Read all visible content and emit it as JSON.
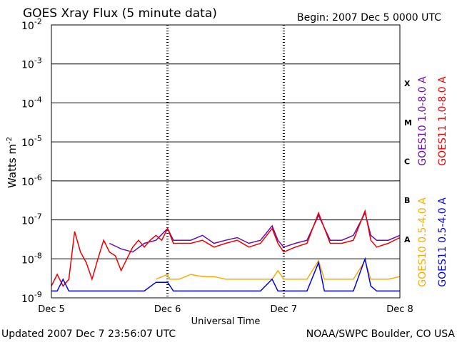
{
  "chart_data": {
    "type": "line",
    "title": "GOES Xray Flux (5 minute data)",
    "begin_label": "Begin:  2007 Dec 5 0000 UTC",
    "xlabel": "Universal Time",
    "ylabel_main": "Watts m",
    "ylabel_exp": "-2",
    "x_ticks": [
      "Dec 5",
      "Dec 6",
      "Dec 7",
      "Dec 8"
    ],
    "x_range_days": [
      0,
      3
    ],
    "y_scale": "log",
    "y_range_exp": [
      -9,
      -2
    ],
    "y_ticks": [
      {
        "base": "10",
        "exp": "-9",
        "e": -9
      },
      {
        "base": "10",
        "exp": "-8",
        "e": -8
      },
      {
        "base": "10",
        "exp": "-7",
        "e": -7
      },
      {
        "base": "10",
        "exp": "-6",
        "e": -6
      },
      {
        "base": "10",
        "exp": "-5",
        "e": -5
      },
      {
        "base": "10",
        "exp": "-4",
        "e": -4
      },
      {
        "base": "10",
        "exp": "-3",
        "e": -3
      },
      {
        "base": "10",
        "exp": "-2",
        "e": -2
      }
    ],
    "flare_classes": [
      {
        "label": "X",
        "e": -3.5
      },
      {
        "label": "M",
        "e": -4.5
      },
      {
        "label": "C",
        "e": -5.5
      },
      {
        "label": "B",
        "e": -6.5
      },
      {
        "label": "A",
        "e": -7.5
      }
    ],
    "grid": true,
    "series": [
      {
        "name": "GOES10 1.0-8.0 A",
        "color": "#6a0dad",
        "x": [
          0.5,
          0.6,
          0.7,
          0.8,
          0.9,
          1.0,
          1.05,
          1.1,
          1.2,
          1.3,
          1.4,
          1.5,
          1.6,
          1.7,
          1.8,
          1.9,
          1.95,
          2.0,
          2.1,
          2.2,
          2.3,
          2.4,
          2.5,
          2.6,
          2.7,
          2.75,
          2.8,
          2.9,
          3.0
        ],
        "y": [
          2.5e-08,
          1.8e-08,
          1.5e-08,
          2.5e-08,
          3e-08,
          6e-08,
          3e-08,
          3e-08,
          3e-08,
          4e-08,
          2.5e-08,
          3e-08,
          3.5e-08,
          2.5e-08,
          3e-08,
          7e-08,
          3e-08,
          2e-08,
          2.5e-08,
          3e-08,
          1.3e-07,
          3e-08,
          3e-08,
          4e-08,
          1.5e-07,
          4e-08,
          3e-08,
          3e-08,
          4e-08
        ]
      },
      {
        "name": "GOES11 1.0-8.0 A",
        "color": "#ee0000",
        "x": [
          0,
          0.05,
          0.1,
          0.15,
          0.2,
          0.25,
          0.3,
          0.35,
          0.4,
          0.45,
          0.5,
          0.55,
          0.6,
          0.65,
          0.7,
          0.75,
          0.8,
          0.85,
          0.9,
          0.95,
          1.0,
          1.05,
          1.1,
          1.2,
          1.3,
          1.4,
          1.5,
          1.6,
          1.7,
          1.8,
          1.9,
          1.95,
          2.0,
          2.1,
          2.2,
          2.3,
          2.4,
          2.5,
          2.6,
          2.7,
          2.75,
          2.8,
          2.9,
          3.0
        ],
        "y": [
          2e-09,
          4e-09,
          2e-09,
          3e-09,
          5e-08,
          1.5e-08,
          8e-09,
          3e-09,
          1e-08,
          3e-08,
          1.5e-08,
          1.2e-08,
          5e-09,
          1e-08,
          2e-08,
          3e-08,
          2e-08,
          3e-08,
          4e-08,
          3e-08,
          6e-08,
          2.5e-08,
          2.5e-08,
          2.5e-08,
          3e-08,
          2e-08,
          2.5e-08,
          3e-08,
          2e-08,
          2.5e-08,
          6e-08,
          2.5e-08,
          1.5e-08,
          2e-08,
          2.5e-08,
          1.5e-07,
          2.5e-08,
          2.5e-08,
          3e-08,
          1.7e-07,
          3e-08,
          2e-08,
          2.5e-08,
          3.5e-08
        ]
      },
      {
        "name": "GOES10 0.5-4.0 A",
        "color": "#ffaa00",
        "x": [
          0.9,
          1.0,
          1.02,
          1.05,
          1.1,
          1.2,
          1.3,
          1.4,
          1.5,
          1.6,
          1.7,
          1.8,
          1.9,
          1.95,
          2.0,
          2.1,
          2.2,
          2.3,
          2.35,
          2.4,
          2.5,
          2.6,
          2.7,
          2.75,
          2.8,
          2.9,
          3.0
        ],
        "y": [
          3e-09,
          4e-09,
          3e-09,
          3e-09,
          3e-09,
          4e-09,
          3.5e-09,
          3.5e-09,
          3e-09,
          3e-09,
          3e-09,
          3e-09,
          3e-09,
          5e-09,
          3e-09,
          3e-09,
          3e-09,
          9e-09,
          3e-09,
          3e-09,
          3e-09,
          3e-09,
          9e-09,
          3e-09,
          3e-09,
          3e-09,
          3.5e-09
        ]
      },
      {
        "name": "GOES11 0.5-4.0 A",
        "color": "#0000ee",
        "x": [
          0,
          0.05,
          0.1,
          0.15,
          0.2,
          0.3,
          0.4,
          0.5,
          0.6,
          0.7,
          0.8,
          0.9,
          1.0,
          1.05,
          1.1,
          1.2,
          1.3,
          1.4,
          1.5,
          1.6,
          1.7,
          1.8,
          1.9,
          1.95,
          2.0,
          2.1,
          2.2,
          2.3,
          2.35,
          2.4,
          2.5,
          2.6,
          2.7,
          2.75,
          2.8,
          2.9,
          3.0
        ],
        "y": [
          1.5e-09,
          1.5e-09,
          3e-09,
          1.5e-09,
          1.5e-09,
          1.5e-09,
          1.5e-09,
          1.5e-09,
          1.5e-09,
          1.5e-09,
          1.5e-09,
          2.5e-09,
          2.5e-09,
          1.5e-09,
          1.5e-09,
          1.5e-09,
          1.5e-09,
          1.5e-09,
          1.5e-09,
          1.5e-09,
          1.5e-09,
          1.5e-09,
          3e-09,
          1.5e-09,
          1.5e-09,
          1.5e-09,
          1.5e-09,
          8e-09,
          1.5e-09,
          1.5e-09,
          1.5e-09,
          1.5e-09,
          1e-08,
          2e-09,
          1.5e-09,
          1.5e-09,
          1.5e-09
        ]
      }
    ],
    "legend_right": [
      {
        "text": "GOES10 1.0-8.0 A",
        "color": "#6a0dad"
      },
      {
        "text": "GOES11 1.0-8.0 A",
        "color": "#ee0000"
      },
      {
        "text": "GOES10 0.5-4.0 A",
        "color": "#ffaa00"
      },
      {
        "text": "GOES11 0.5-4.0 A",
        "color": "#0000ee"
      }
    ],
    "footer_left": "Updated 2007 Dec  7 23:56:07 UTC",
    "footer_right": "NOAA/SWPC Boulder, CO USA"
  }
}
